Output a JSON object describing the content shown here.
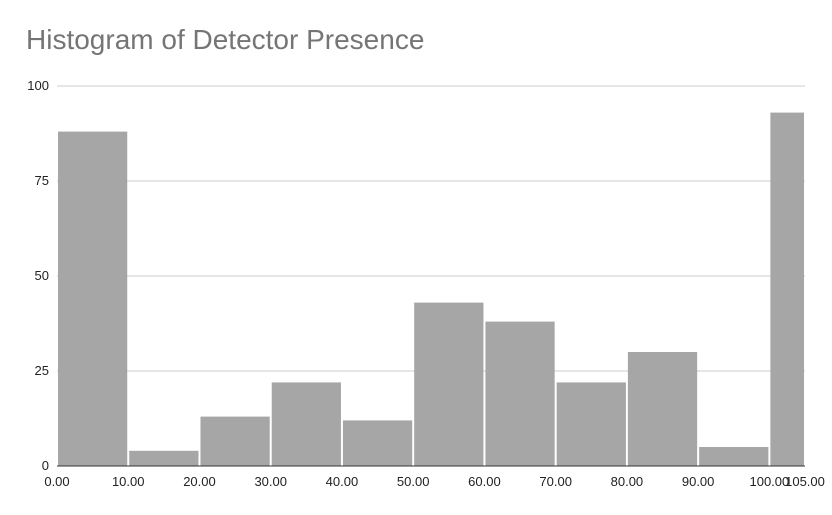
{
  "title": "Histogram of Detector Presence",
  "colors": {
    "bar": "#a6a6a6",
    "grid": "#cccccc",
    "axis": "#333333",
    "title": "#757575"
  },
  "chart_data": {
    "type": "bar",
    "title": "Histogram of Detector Presence",
    "xlabel": "",
    "ylabel": "",
    "ylim": [
      0,
      100
    ],
    "xlim": [
      0,
      105
    ],
    "grid": true,
    "legend": "none",
    "y_ticks": [
      "0",
      "25",
      "50",
      "75",
      "100"
    ],
    "y_tick_values": [
      0,
      25,
      50,
      75,
      100
    ],
    "x_ticks": [
      "0.00",
      "10.00",
      "20.00",
      "30.00",
      "40.00",
      "50.00",
      "60.00",
      "70.00",
      "80.00",
      "90.00",
      "100.00",
      "105.00"
    ],
    "x_tick_values": [
      0,
      10,
      20,
      30,
      40,
      50,
      60,
      70,
      80,
      90,
      100,
      105
    ],
    "bins": [
      {
        "start": 0,
        "end": 10,
        "value": 88
      },
      {
        "start": 10,
        "end": 20,
        "value": 4
      },
      {
        "start": 20,
        "end": 30,
        "value": 13
      },
      {
        "start": 30,
        "end": 40,
        "value": 22
      },
      {
        "start": 40,
        "end": 50,
        "value": 12
      },
      {
        "start": 50,
        "end": 60,
        "value": 43
      },
      {
        "start": 60,
        "end": 70,
        "value": 38
      },
      {
        "start": 70,
        "end": 80,
        "value": 22
      },
      {
        "start": 80,
        "end": 90,
        "value": 30
      },
      {
        "start": 90,
        "end": 100,
        "value": 5
      },
      {
        "start": 100,
        "end": 105,
        "value": 93
      }
    ]
  }
}
